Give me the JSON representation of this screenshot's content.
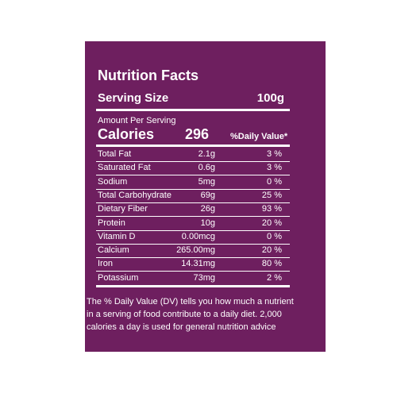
{
  "header": {
    "title": "Nutrition Facts",
    "serving_label": "Serving Size",
    "serving_value": "100g"
  },
  "calories": {
    "amount_label": "Amount Per Serving",
    "label": "Calories",
    "value": "296",
    "dv_header": "%Daily Value*"
  },
  "table": {
    "rows": [
      [
        "Total Fat",
        "2.1g",
        "3 %"
      ],
      [
        "Saturated Fat",
        "0.6g",
        "3 %"
      ],
      [
        "Sodium",
        "5mg",
        "0 %"
      ],
      [
        "Total Carbohydrate",
        "69g",
        "25 %"
      ],
      [
        "Dietary Fiber",
        "26g",
        "93 %"
      ],
      [
        "Protein",
        "10g",
        "20 %"
      ],
      [
        "Vitamin D",
        "0.00mcg",
        "0 %"
      ],
      [
        "Calcium",
        "265.00mg",
        "20 %"
      ],
      [
        "Iron",
        "14.31mg",
        "80 %"
      ],
      [
        "Potassium",
        "73mg",
        "2 %"
      ]
    ]
  },
  "footnote": "The % Daily Value (DV) tells you how much a nutrient in a serving of food contribute to a daily diet. 2,000 calories a day is used for general nutrition advice"
}
